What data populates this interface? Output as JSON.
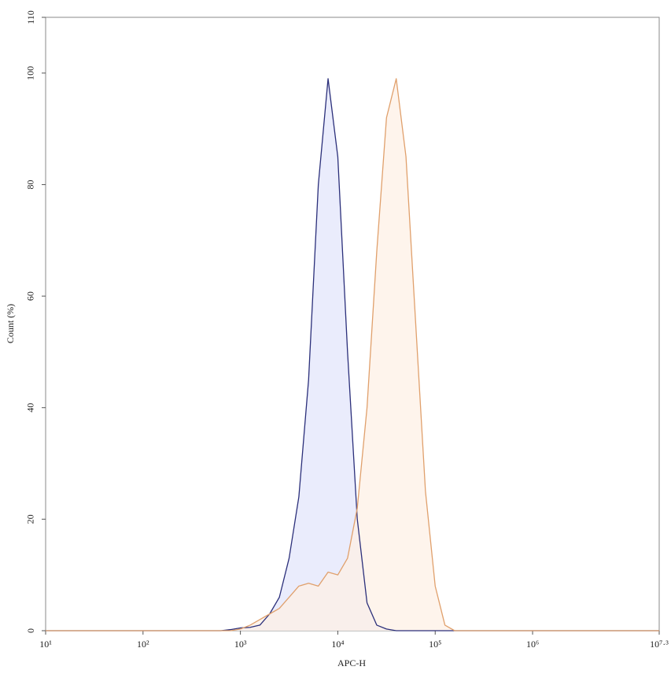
{
  "chart_data": {
    "type": "area",
    "x_label": "APC-H",
    "y_label": "Count (%)",
    "xscale": "log",
    "xlim": [
      10,
      19952623
    ],
    "xticks": [
      {
        "value": 10,
        "label": "10¹"
      },
      {
        "value": 100,
        "label": "10²"
      },
      {
        "value": 1000,
        "label": "10³"
      },
      {
        "value": 10000,
        "label": "10⁴"
      },
      {
        "value": 100000,
        "label": "10⁵"
      },
      {
        "value": 1000000,
        "label": "10⁶"
      },
      {
        "value": 19952623,
        "label": "10⁷·³"
      }
    ],
    "ylim": [
      0,
      110
    ],
    "yticks": [
      0,
      20,
      40,
      60,
      80,
      100,
      110
    ],
    "x": [
      10,
      631,
      794,
      1000,
      1259,
      1585,
      1995,
      2512,
      3162,
      3981,
      5012,
      6310,
      7943,
      10000,
      12589,
      15849,
      19953,
      25119,
      31623,
      39811,
      50119,
      63096,
      79433,
      100000,
      125893,
      158489,
      19952623
    ],
    "series": [
      {
        "color": "#2b2f7a",
        "fill": "#e3e5fb",
        "values": [
          0,
          0,
          0.2,
          0.5,
          0.6,
          1,
          3,
          6,
          13,
          24,
          45,
          80,
          99,
          85,
          50,
          20,
          5,
          1,
          0.3,
          0,
          0,
          0,
          0,
          0,
          0,
          0,
          0
        ]
      },
      {
        "color": "#e0a06c",
        "fill": "#fdf0e5",
        "values": [
          0,
          0,
          0,
          0.3,
          1,
          2,
          3,
          4,
          6,
          8,
          8.5,
          8,
          10.5,
          10,
          13,
          22,
          40,
          68,
          92,
          99,
          85,
          55,
          25,
          8,
          1,
          0,
          0
        ]
      }
    ]
  }
}
